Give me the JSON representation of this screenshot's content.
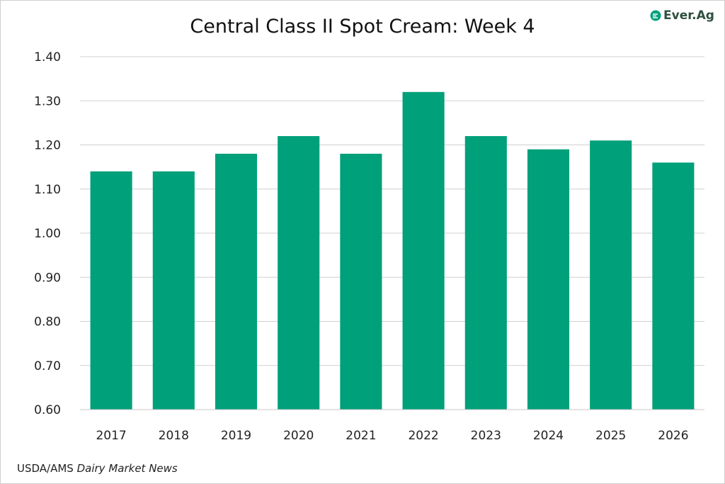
{
  "chart_data": {
    "type": "bar",
    "title": "Central Class II Spot Cream: Week 4",
    "categories": [
      "2017",
      "2018",
      "2019",
      "2020",
      "2021",
      "2022",
      "2023",
      "2024",
      "2025",
      "2026"
    ],
    "values": [
      1.14,
      1.14,
      1.18,
      1.22,
      1.18,
      1.32,
      1.22,
      1.19,
      1.21,
      1.16
    ],
    "ylim": [
      0.6,
      1.4
    ],
    "yticks": [
      "0.60",
      "0.70",
      "0.80",
      "0.90",
      "1.00",
      "1.10",
      "1.20",
      "1.30",
      "1.40"
    ],
    "xlabel": "",
    "ylabel": "",
    "grid": true,
    "bar_color": "#00A07A"
  },
  "brand": {
    "name": "Ever.Ag"
  },
  "source": {
    "prefix": "USDA/AMS ",
    "publication": "Dairy Market News"
  }
}
